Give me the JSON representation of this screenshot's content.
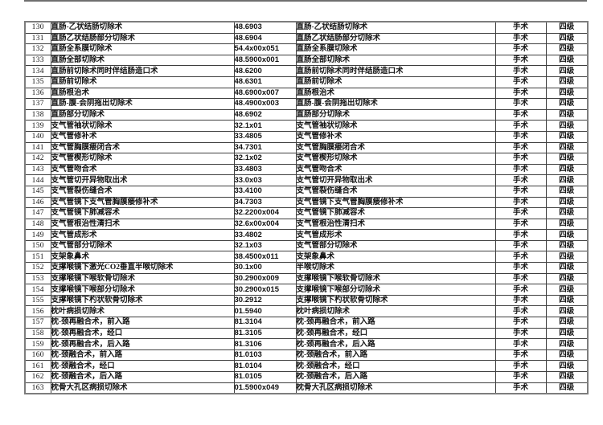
{
  "page": {
    "background": "#ffffff",
    "text_color": "#121212",
    "inner_border_color": "#3f3f3f",
    "outer_border_color": "#7d7d7d"
  },
  "table": {
    "rows": [
      {
        "num": "130",
        "name": "直肠-乙状结肠切除术",
        "code": "48.6903",
        "name2": "直肠-乙状结肠切除术",
        "category": "手术",
        "level": "四级"
      },
      {
        "num": "131",
        "name": "直肠乙状结肠部分切除术",
        "code": "48.6904",
        "name2": "直肠乙状结肠部分切除术",
        "category": "手术",
        "level": "四级"
      },
      {
        "num": "132",
        "name": "直肠全系膜切除术",
        "code": "54.4x00x051",
        "name2": "直肠全系膜切除术",
        "category": "手术",
        "level": "四级"
      },
      {
        "num": "133",
        "name": "直肠全部切除术",
        "code": "48.5900x001",
        "name2": "直肠全部切除术",
        "category": "手术",
        "level": "四级"
      },
      {
        "num": "134",
        "name": "直肠前切除术同时伴结肠造口术",
        "code": "48.6200",
        "name2": "直肠前切除术同时伴结肠造口术",
        "category": "手术",
        "level": "四级"
      },
      {
        "num": "135",
        "name": "直肠前切除术",
        "code": "48.6301",
        "name2": "直肠前切除术",
        "category": "手术",
        "level": "四级"
      },
      {
        "num": "136",
        "name": "直肠根治术",
        "code": "48.6900x007",
        "name2": "直肠根治术",
        "category": "手术",
        "level": "四级"
      },
      {
        "num": "137",
        "name": "直肠-腹-会阴拖出切除术",
        "code": "48.4900x003",
        "name2": "直肠-腹-会阴拖出切除术",
        "category": "手术",
        "level": "四级"
      },
      {
        "num": "138",
        "name": "直肠部分切除术",
        "code": "48.6902",
        "name2": "直肠部分切除术",
        "category": "手术",
        "level": "四级"
      },
      {
        "num": "139",
        "name": "支气管袖状切除术",
        "code": "32.1x01",
        "name2": "支气管袖状切除术",
        "category": "手术",
        "level": "四级"
      },
      {
        "num": "140",
        "name": "支气管修补术",
        "code": "33.4805",
        "name2": "支气管修补术",
        "category": "手术",
        "level": "四级"
      },
      {
        "num": "141",
        "name": "支气管胸膜瘘闭合术",
        "code": "34.7301",
        "name2": "支气管胸膜瘘闭合术",
        "category": "手术",
        "level": "四级"
      },
      {
        "num": "142",
        "name": "支气管楔形切除术",
        "code": "32.1x02",
        "name2": "支气管楔形切除术",
        "category": "手术",
        "level": "四级"
      },
      {
        "num": "143",
        "name": "支气管吻合术",
        "code": "33.4803",
        "name2": "支气管吻合术",
        "category": "手术",
        "level": "四级"
      },
      {
        "num": "144",
        "name": "支气管切开异物取出术",
        "code": "33.0x03",
        "name2": "支气管切开异物取出术",
        "category": "手术",
        "level": "四级"
      },
      {
        "num": "145",
        "name": "支气管裂伤缝合术",
        "code": "33.4100",
        "name2": "支气管裂伤缝合术",
        "category": "手术",
        "level": "四级"
      },
      {
        "num": "146",
        "name": "支气管镜下支气管胸膜瘘修补术",
        "code": "34.7303",
        "name2": "支气管镜下支气管胸膜瘘修补术",
        "category": "手术",
        "level": "四级"
      },
      {
        "num": "147",
        "name": "支气管镜下肺减容术",
        "code": "32.2200x004",
        "name2": "支气管镜下肺减容术",
        "category": "手术",
        "level": "四级"
      },
      {
        "num": "148",
        "name": "支气管根治性清扫术",
        "code": "32.6x00x004",
        "name2": "支气管根治性清扫术",
        "category": "手术",
        "level": "四级"
      },
      {
        "num": "149",
        "name": "支气管成形术",
        "code": "33.4802",
        "name2": "支气管成形术",
        "category": "手术",
        "level": "四级"
      },
      {
        "num": "150",
        "name": "支气管部分切除术",
        "code": "32.1x03",
        "name2": "支气管部分切除术",
        "category": "手术",
        "level": "四级"
      },
      {
        "num": "151",
        "name": "支架象鼻术",
        "code": "38.4500x011",
        "name2": "支架象鼻术",
        "category": "手术",
        "level": "四级"
      },
      {
        "num": "152",
        "name": "支撑喉镜下激光CO2垂直半喉切除术",
        "code": "30.1x00",
        "name2": "半喉切除术",
        "category": "手术",
        "level": "四级"
      },
      {
        "num": "153",
        "name": "支撑喉镜下喉软骨切除术",
        "code": "30.2900x009",
        "name2": "支撑喉镜下喉软骨切除术",
        "category": "手术",
        "level": "四级"
      },
      {
        "num": "154",
        "name": "支撑喉镜下喉部分切除术",
        "code": "30.2900x015",
        "name2": "支撑喉镜下喉部分切除术",
        "category": "手术",
        "level": "四级"
      },
      {
        "num": "155",
        "name": "支撑喉镜下杓状软骨切除术",
        "code": "30.2912",
        "name2": "支撑喉镜下杓状软骨切除术",
        "category": "手术",
        "level": "四级"
      },
      {
        "num": "156",
        "name": "枕叶病损切除术",
        "code": "01.5940",
        "name2": "枕叶病损切除术",
        "category": "手术",
        "level": "四级"
      },
      {
        "num": "157",
        "name": "枕-颈再融合术，前入路",
        "code": "81.3104",
        "name2": "枕-颈再融合术，前入路",
        "category": "手术",
        "level": "四级"
      },
      {
        "num": "158",
        "name": "枕-颈再融合术，经口",
        "code": "81.3105",
        "name2": "枕-颈再融合术，经口",
        "category": "手术",
        "level": "四级"
      },
      {
        "num": "159",
        "name": "枕-颈再融合术，后入路",
        "code": "81.3106",
        "name2": "枕-颈再融合术，后入路",
        "category": "手术",
        "level": "四级"
      },
      {
        "num": "160",
        "name": "枕-颈融合术，前入路",
        "code": "81.0103",
        "name2": "枕-颈融合术，前入路",
        "category": "手术",
        "level": "四级"
      },
      {
        "num": "161",
        "name": "枕-颈融合术，经口",
        "code": "81.0104",
        "name2": "枕-颈融合术，经口",
        "category": "手术",
        "level": "四级"
      },
      {
        "num": "162",
        "name": "枕-颈融合术，后入路",
        "code": "81.0105",
        "name2": "枕-颈融合术，后入路",
        "category": "手术",
        "level": "四级"
      },
      {
        "num": "163",
        "name": "枕骨大孔区病损切除术",
        "code": "01.5900x049",
        "name2": "枕骨大孔区病损切除术",
        "category": "手术",
        "level": "四级"
      }
    ]
  }
}
